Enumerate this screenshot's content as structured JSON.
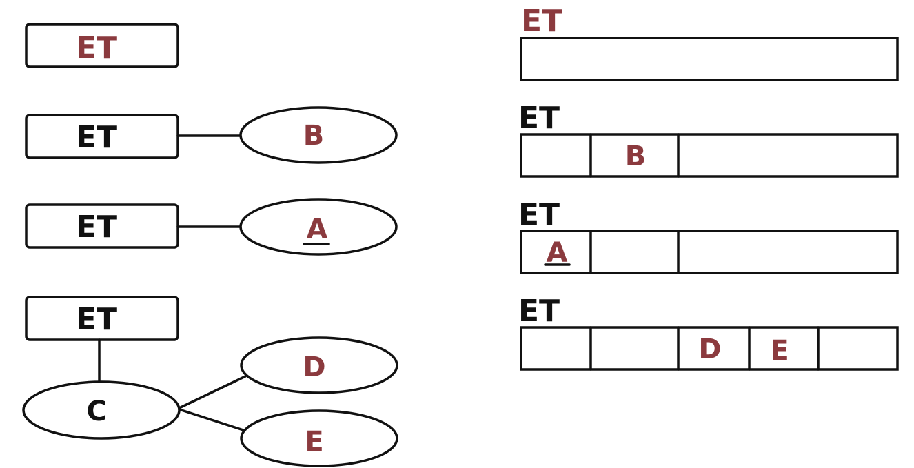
{
  "colors": {
    "ink": "#111111",
    "red": "#8b3a3e",
    "background": "#ffffff"
  },
  "left": {
    "row1": {
      "entity": "ET"
    },
    "row2": {
      "entity": "ET",
      "attr": "B"
    },
    "row3": {
      "entity": "ET",
      "attr": "A"
    },
    "row4": {
      "entity": "ET",
      "composite": "C",
      "sub1": "D",
      "sub2": "E"
    }
  },
  "right": {
    "table1": {
      "name": "ET"
    },
    "table2": {
      "name": "ET",
      "col": "B"
    },
    "table3": {
      "name": "ET",
      "col": "A"
    },
    "table4": {
      "name": "ET",
      "col1": "D",
      "col2": "E"
    }
  }
}
